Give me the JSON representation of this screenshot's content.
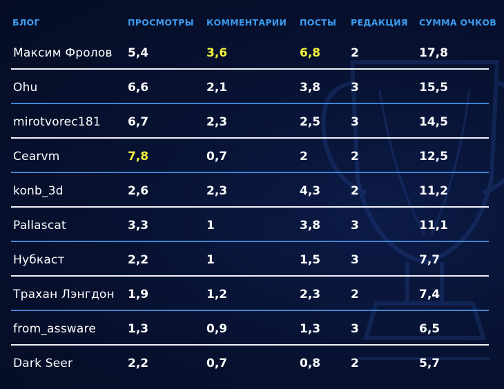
{
  "colors": {
    "header": "#3d9bf0",
    "highlight": "#f5f53c",
    "rule_white": "#f2f4fa",
    "rule_blue": "#3f86d6"
  },
  "headers": {
    "blog": "БЛОГ",
    "views": "ПРОСМОТРЫ",
    "comments": "КОММЕНТАРИИ",
    "posts": "ПОСТЫ",
    "editorial": "РЕДАКЦИЯ",
    "total": "СУММА ОЧКОВ"
  },
  "rows": [
    {
      "blog": "Максим Фролов",
      "views": "5,4",
      "comments": "3,6",
      "posts": "6,8",
      "editorial": "2",
      "total": "17,8",
      "highlight": [
        "comments",
        "posts"
      ]
    },
    {
      "blog": "Ohu",
      "views": "6,6",
      "comments": "2,1",
      "posts": "3,8",
      "editorial": "3",
      "total": "15,5",
      "highlight": []
    },
    {
      "blog": "mirotvorec181",
      "views": "6,7",
      "comments": "2,3",
      "posts": "2,5",
      "editorial": "3",
      "total": "14,5",
      "highlight": []
    },
    {
      "blog": "Cearvm",
      "views": "7,8",
      "comments": "0,7",
      "posts": "2",
      "editorial": "2",
      "total": "12,5",
      "highlight": [
        "views"
      ]
    },
    {
      "blog": "konb_3d",
      "views": "2,6",
      "comments": "2,3",
      "posts": "4,3",
      "editorial": "2",
      "total": "11,2",
      "highlight": []
    },
    {
      "blog": "Pallascat",
      "views": "3,3",
      "comments": "1",
      "posts": "3,8",
      "editorial": "3",
      "total": "11,1",
      "highlight": []
    },
    {
      "blog": "Нубкаст",
      "views": "2,2",
      "comments": "1",
      "posts": "1,5",
      "editorial": "3",
      "total": "7,7",
      "highlight": []
    },
    {
      "blog": "Трахан Лэнгдон",
      "views": "1,9",
      "comments": "1,2",
      "posts": "2,3",
      "editorial": "2",
      "total": "7,4",
      "highlight": []
    },
    {
      "blog": "from_assware",
      "views": "1,3",
      "comments": "0,9",
      "posts": "1,3",
      "editorial": "3",
      "total": "6,5",
      "highlight": []
    },
    {
      "blog": "Dark Seer",
      "views": "2,2",
      "comments": "0,7",
      "posts": "0,8",
      "editorial": "2",
      "total": "5,7",
      "highlight": []
    }
  ]
}
